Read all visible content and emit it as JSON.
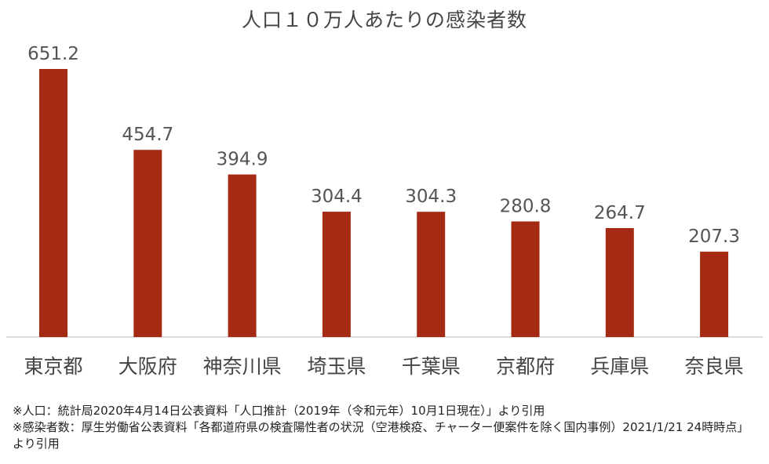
{
  "chart_data": {
    "type": "bar",
    "title": "人口１０万人あたりの感染者数",
    "categories": [
      "東京都",
      "大阪府",
      "神奈川県",
      "埼玉県",
      "千葉県",
      "京都府",
      "兵庫県",
      "奈良県"
    ],
    "values": [
      651.2,
      454.7,
      394.9,
      304.4,
      304.3,
      280.8,
      264.7,
      207.3
    ],
    "value_labels": [
      "651.2",
      "454.7",
      "394.9",
      "304.4",
      "304.3",
      "280.8",
      "264.7",
      "207.3"
    ],
    "bar_color": "#a52a14",
    "ylim": [
      0,
      651.2
    ],
    "grid": false,
    "xlabel": "",
    "ylabel": ""
  },
  "notes": [
    "※人口：統計局2020年4月14日公表資料「人口推計（2019年（令和元年）10月1日現在）」より引用",
    "※感染者数：厚生労働省公表資料「各都道府県の検査陽性者の状況（空港検疫、チャーター便案件を除く国内事例）2021/1/21 24時時点」より引用"
  ]
}
